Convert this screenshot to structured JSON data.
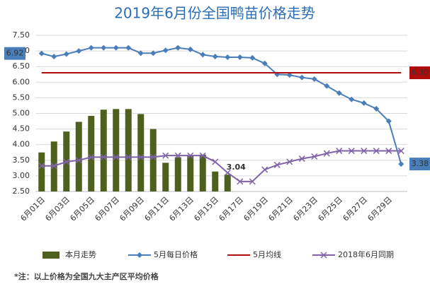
{
  "chart_data": {
    "type": "combo",
    "title": "2019年6月份全国鸭苗价格走势",
    "footnote": "*注：以上价格为全国九大主产区平均价格",
    "categories": [
      "6月01日",
      null,
      "6月03日",
      null,
      "6月05日",
      null,
      "6月07日",
      null,
      "6月09日",
      null,
      "6月11日",
      null,
      "6月13日",
      null,
      "6月15日",
      null,
      "6月17日",
      null,
      "6月19日",
      null,
      "6月21日",
      null,
      "6月23日",
      null,
      "6月25日",
      null,
      "6月27日",
      null,
      "6月29日",
      null
    ],
    "ylim": [
      2.5,
      7.5
    ],
    "yticks": [
      {
        "value": 2.5,
        "label": "2.50"
      },
      {
        "value": 3,
        "label": "3.00"
      },
      {
        "value": 3.5,
        "label": "3.50"
      },
      {
        "value": 4,
        "label": "4.00"
      },
      {
        "value": 4.5,
        "label": "4.50"
      },
      {
        "value": 5,
        "label": "5.00"
      },
      {
        "value": 5.5,
        "label": "5.50"
      },
      {
        "value": 6,
        "label": "6.00"
      },
      {
        "value": 6.5,
        "label": "6.50"
      },
      {
        "value": 7,
        "label": "7.00"
      },
      {
        "value": 7.5,
        "label": "7.50"
      }
    ],
    "grid": true,
    "legend": "bottom",
    "series": [
      {
        "name": "本月走势",
        "kind": "bar",
        "color": "#4f5f1e",
        "values": [
          3.75,
          4.1,
          4.42,
          4.73,
          4.92,
          5.12,
          5.14,
          5.14,
          4.98,
          4.5,
          3.42,
          3.6,
          3.65,
          3.68,
          3.14,
          3.04,
          null,
          null,
          null,
          null,
          null,
          null,
          null,
          null,
          null,
          null,
          null,
          null,
          null,
          null
        ],
        "value_labels": [
          null,
          null,
          null,
          null,
          null,
          null,
          null,
          null,
          null,
          null,
          null,
          null,
          null,
          null,
          null,
          "3.04",
          null,
          null,
          null,
          null,
          null,
          null,
          null,
          null,
          null,
          null,
          null,
          null,
          null,
          null
        ]
      },
      {
        "name": "5月每日价格",
        "kind": "line",
        "marker": "diamond",
        "color": "#4a7ebb",
        "values": [
          6.92,
          6.82,
          6.9,
          7.0,
          7.1,
          7.1,
          7.1,
          7.1,
          6.93,
          6.93,
          7.02,
          7.1,
          7.05,
          6.88,
          6.82,
          6.8,
          6.8,
          6.78,
          6.6,
          6.25,
          6.23,
          6.15,
          6.1,
          5.88,
          5.65,
          5.45,
          5.33,
          5.15,
          4.75,
          3.38
        ],
        "value_labels": [
          "6.92",
          null,
          null,
          null,
          null,
          null,
          null,
          null,
          null,
          null,
          null,
          null,
          null,
          null,
          null,
          null,
          null,
          null,
          null,
          null,
          null,
          null,
          null,
          null,
          null,
          null,
          null,
          null,
          null,
          "3.38"
        ]
      },
      {
        "name": "5月均线",
        "kind": "line",
        "marker": "none",
        "color": "#b00c0c",
        "values": [
          6.3,
          6.3,
          6.3,
          6.3,
          6.3,
          6.3,
          6.3,
          6.3,
          6.3,
          6.3,
          6.3,
          6.3,
          6.3,
          6.3,
          6.3,
          6.3,
          6.3,
          6.3,
          6.3,
          6.3,
          6.3,
          6.3,
          6.3,
          6.3,
          6.3,
          6.3,
          6.3,
          6.3,
          6.3,
          6.3
        ],
        "value_labels": [
          null,
          null,
          null,
          null,
          null,
          null,
          null,
          null,
          null,
          null,
          null,
          null,
          null,
          null,
          null,
          null,
          null,
          null,
          null,
          null,
          null,
          null,
          null,
          null,
          null,
          null,
          null,
          null,
          null,
          "6.30"
        ]
      },
      {
        "name": "2018年6月同期",
        "kind": "line",
        "marker": "x",
        "color": "#7f63a8",
        "values": [
          3.32,
          3.32,
          3.45,
          3.5,
          3.6,
          3.6,
          3.6,
          3.6,
          3.6,
          3.6,
          3.65,
          3.65,
          3.65,
          3.65,
          3.45,
          3.1,
          2.82,
          2.82,
          3.2,
          3.35,
          3.45,
          3.55,
          3.62,
          3.72,
          3.8,
          3.8,
          3.8,
          3.8,
          3.8,
          3.8
        ]
      }
    ]
  }
}
